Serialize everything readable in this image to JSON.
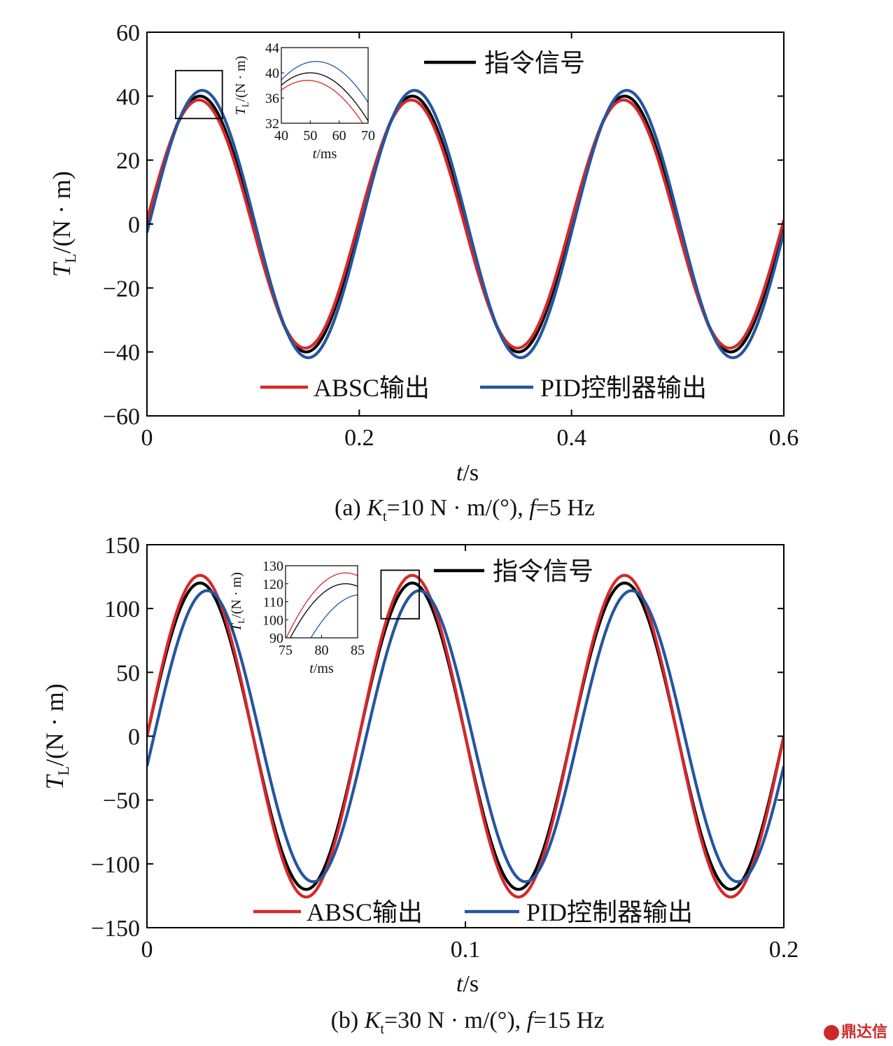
{
  "chart_data": [
    {
      "type": "line",
      "panel": "a",
      "caption": {
        "prefix": "(a) ",
        "k_sym": "K",
        "k_sub": "t",
        "k_rest": "=10 N · m/(°), ",
        "f_sym": "f",
        "f_rest": "=5 Hz"
      },
      "xlabel": {
        "sym": "t",
        "rest": "/s"
      },
      "ylabel": {
        "sym": "T",
        "sub": "L",
        "rest": "/(N · m)"
      },
      "xlim": [
        0,
        0.6
      ],
      "ylim": [
        -60,
        60
      ],
      "xticks": [
        0,
        0.2,
        0.4,
        0.6
      ],
      "xtick_labels": [
        "0",
        "0.2",
        "0.4",
        "0.6"
      ],
      "yticks": [
        -60,
        -40,
        -20,
        0,
        20,
        40,
        60
      ],
      "ytick_labels": [
        "−60",
        "−40",
        "−20",
        "0",
        "20",
        "40",
        "60"
      ],
      "frequency_hz": 5,
      "series": [
        {
          "name": "指令信号",
          "color": "#000000",
          "amplitude": 40,
          "delay_s": 0.0
        },
        {
          "name": "ABSC输出",
          "color": "#d7282a",
          "amplitude": 38.8,
          "delay_s": -0.001
        },
        {
          "name": "PID控制器输出",
          "color": "#24569f",
          "amplitude": 41.8,
          "delay_s": 0.002
        }
      ],
      "inset": {
        "xlabel": {
          "sym": "t",
          "rest": "/ms"
        },
        "ylabel": {
          "sym": "T",
          "sub": "L",
          "rest": "/(N · m)"
        },
        "xlim": [
          40,
          70
        ],
        "ylim": [
          32,
          44
        ],
        "xticks": [
          40,
          50,
          60,
          70
        ],
        "xtick_labels": [
          "40",
          "50",
          "60",
          "70"
        ],
        "yticks": [
          32,
          36,
          40,
          44
        ],
        "ytick_labels": [
          "32",
          "36",
          "40",
          "44"
        ]
      },
      "zoom_box": {
        "t": [
          0.027,
          0.071
        ],
        "y": [
          33,
          48
        ]
      }
    },
    {
      "type": "line",
      "panel": "b",
      "caption": {
        "prefix": "(b) ",
        "k_sym": "K",
        "k_sub": "t",
        "k_rest": "=30 N · m/(°), ",
        "f_sym": "f",
        "f_rest": "=15 Hz"
      },
      "xlabel": {
        "sym": "t",
        "rest": "/s"
      },
      "ylabel": {
        "sym": "T",
        "sub": "L",
        "rest": "/(N · m)"
      },
      "xlim": [
        0,
        0.2
      ],
      "ylim": [
        -150,
        150
      ],
      "xticks": [
        0,
        0.1,
        0.2
      ],
      "xtick_labels": [
        "0",
        "0.1",
        "0.2"
      ],
      "yticks": [
        -150,
        -100,
        -50,
        0,
        50,
        100,
        150
      ],
      "ytick_labels": [
        "−150",
        "−100",
        "−50",
        "0",
        "50",
        "100",
        "150"
      ],
      "frequency_hz": 15,
      "series": [
        {
          "name": "指令信号",
          "color": "#000000",
          "amplitude": 120,
          "delay_s": 0.0
        },
        {
          "name": "ABSC输出",
          "color": "#d7282a",
          "amplitude": 126,
          "delay_s": 0.0
        },
        {
          "name": "PID控制器输出",
          "color": "#24569f",
          "amplitude": 114,
          "delay_s": 0.0022
        }
      ],
      "inset": {
        "xlabel": {
          "sym": "t",
          "rest": "/ms"
        },
        "ylabel": {
          "sym": "T",
          "sub": "L",
          "rest": "/(N · m)"
        },
        "xlim": [
          75,
          85
        ],
        "ylim": [
          90,
          130
        ],
        "xticks": [
          75,
          80,
          85
        ],
        "xtick_labels": [
          "75",
          "80",
          "85"
        ],
        "yticks": [
          90,
          100,
          110,
          120,
          130
        ],
        "ytick_labels": [
          "90",
          "100",
          "110",
          "120",
          "130"
        ]
      },
      "zoom_box": {
        "t": [
          0.0735,
          0.0855
        ],
        "y": [
          92,
          130
        ]
      }
    }
  ],
  "watermark": "鼎达信"
}
